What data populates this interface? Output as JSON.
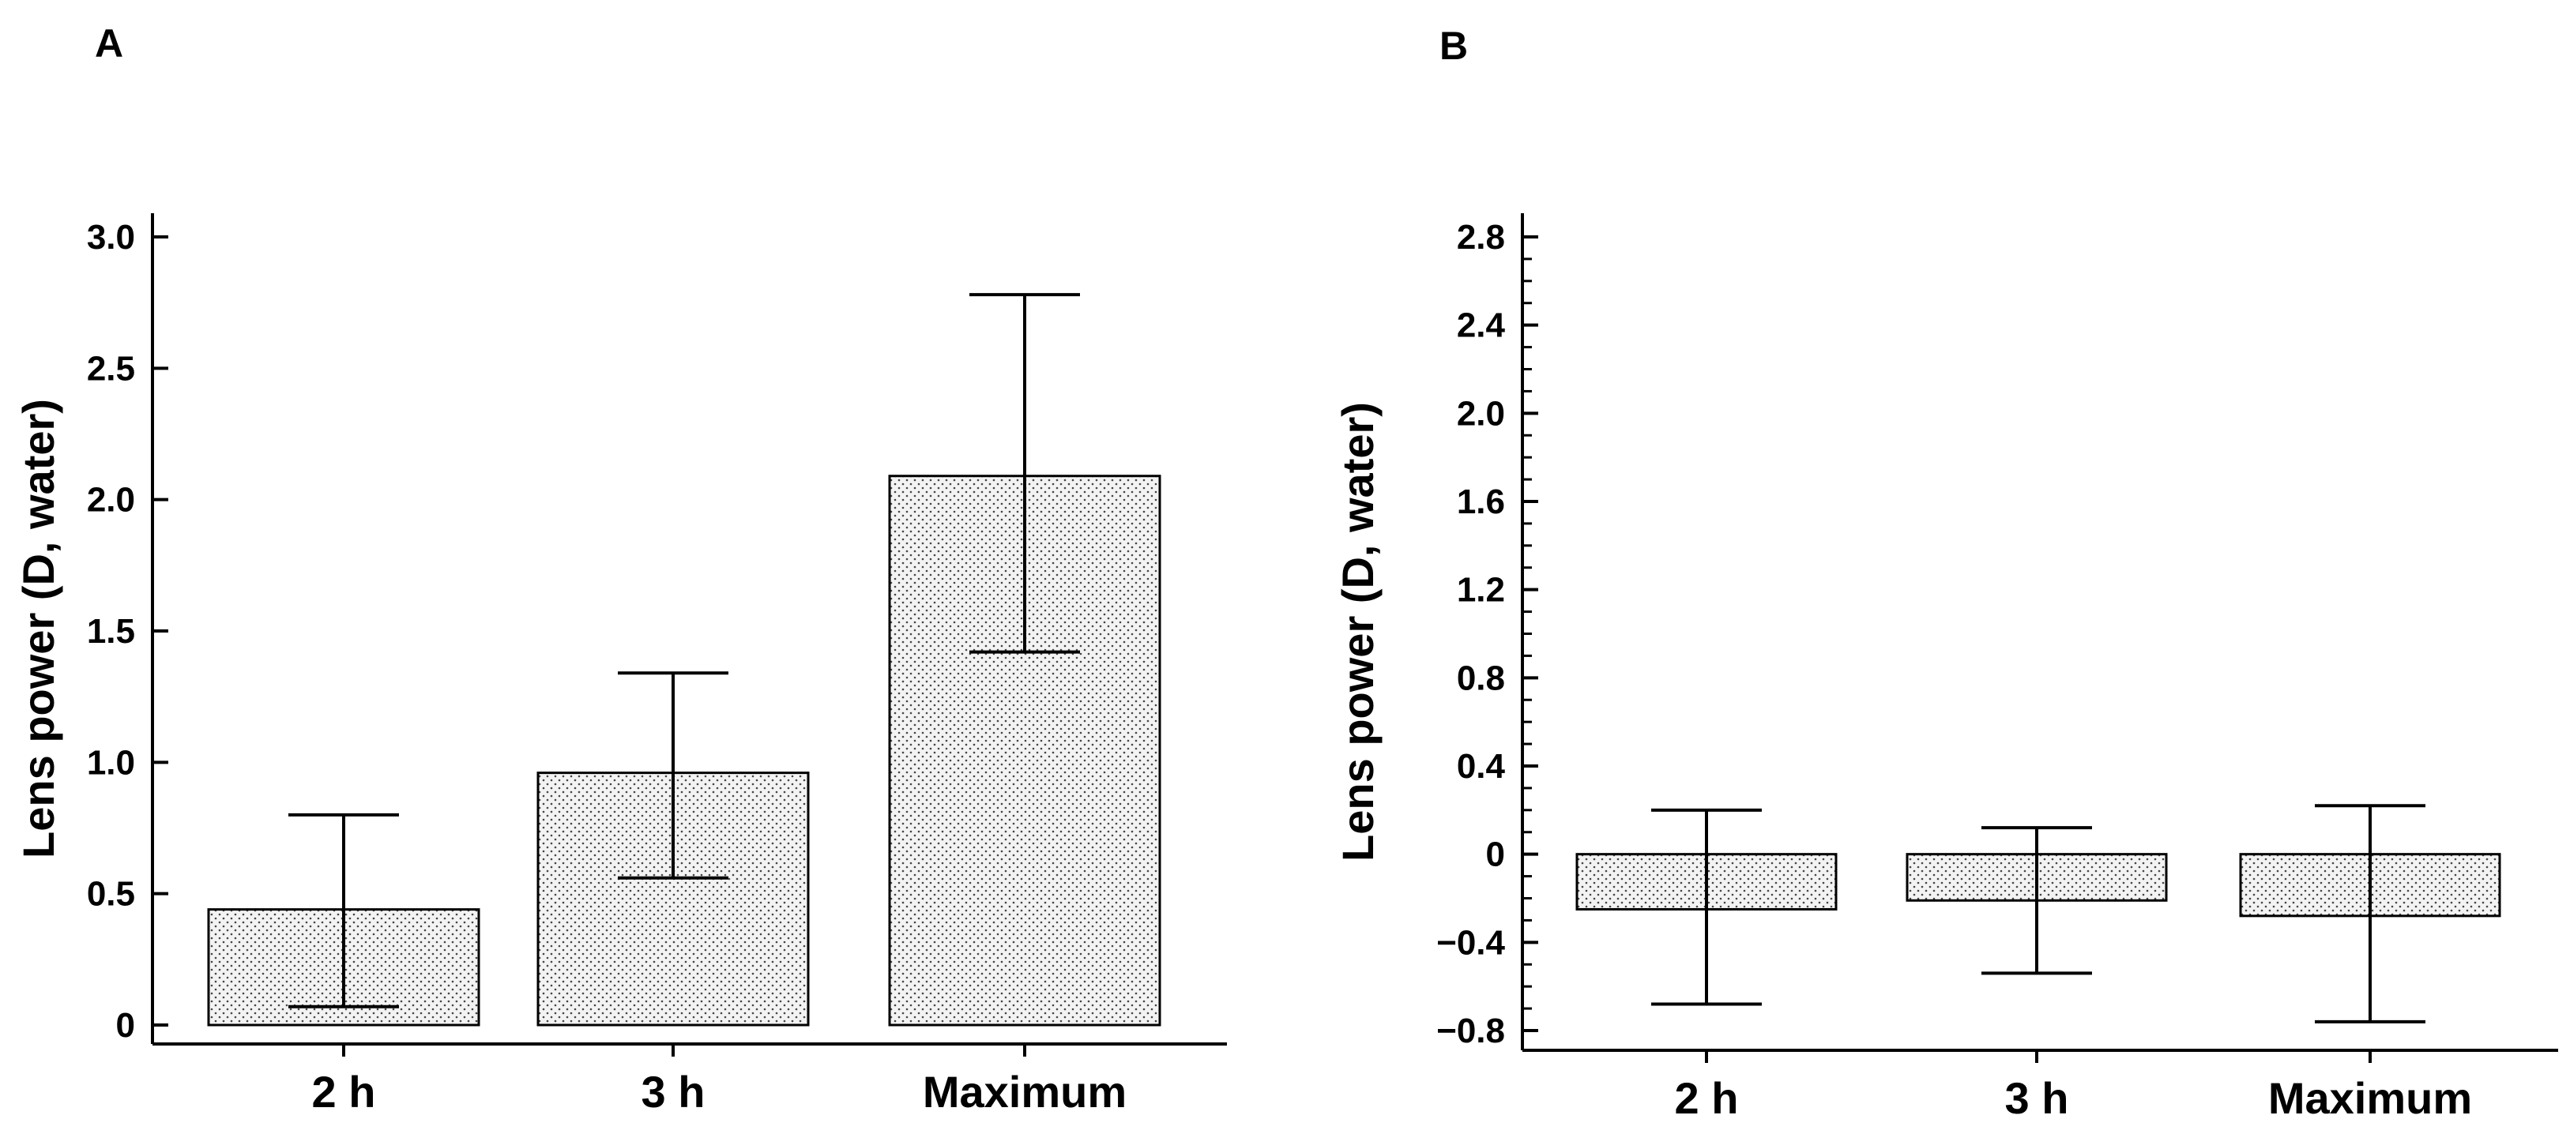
{
  "chart_data": [
    {
      "panel": "A",
      "type": "bar",
      "categories": [
        "2 h",
        "3 h",
        "Maximum"
      ],
      "values": [
        0.44,
        0.96,
        2.09
      ],
      "error_low": [
        0.07,
        0.56,
        1.42
      ],
      "error_high": [
        0.8,
        1.34,
        2.78
      ],
      "ylabel": "Lens power (D, water)",
      "ylim": [
        0,
        3.0
      ],
      "yticks": [
        0,
        0.5,
        1.0,
        1.5,
        2.0,
        2.5,
        3.0
      ],
      "ytick_labels": [
        "0",
        "0.5",
        "1.0",
        "1.5",
        "2.0",
        "2.5",
        "3.0"
      ],
      "pattern": "dotted",
      "bar_color": "#efefef"
    },
    {
      "panel": "B",
      "type": "bar",
      "categories": [
        "2 h",
        "3 h",
        "Maximum"
      ],
      "values": [
        -0.25,
        -0.21,
        -0.28
      ],
      "error_low": [
        -0.68,
        -0.54,
        -0.76
      ],
      "error_high": [
        0.2,
        0.12,
        0.22
      ],
      "ylabel": "Lens power (D, water)",
      "ylim": [
        -0.8,
        2.8
      ],
      "yticks": [
        -0.8,
        -0.4,
        0,
        0.4,
        0.8,
        1.2,
        1.6,
        2.0,
        2.4,
        2.8
      ],
      "ytick_labels": [
        "−0.8",
        "−0.4",
        "0",
        "0.4",
        "0.8",
        "1.2",
        "1.6",
        "2.0",
        "2.4",
        "2.8"
      ],
      "pattern": "dotted",
      "bar_color": "#efefef"
    }
  ]
}
